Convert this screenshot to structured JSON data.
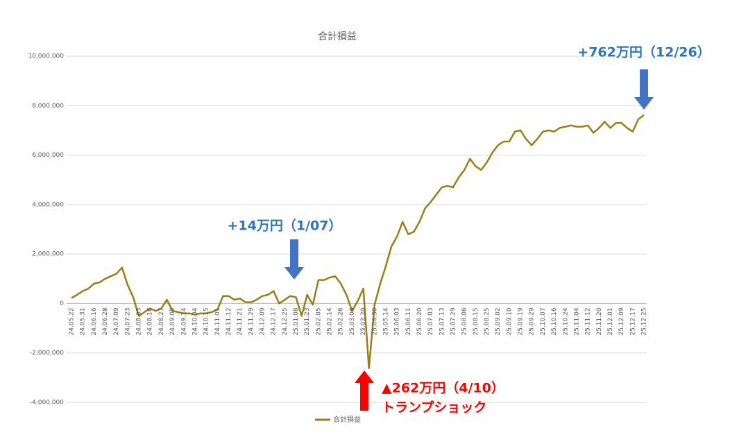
{
  "chart_data": {
    "type": "line",
    "title": "合計損益",
    "categories": [
      "24.05.22",
      null,
      "24.05.31",
      null,
      "24.06.16",
      null,
      "24.06.28",
      null,
      "24.07.09",
      null,
      "24.07.23",
      null,
      "24.08.03",
      null,
      "24.08.16",
      null,
      "24.08.27",
      null,
      "24.09.05",
      null,
      "24.09.14",
      null,
      "24.10.04",
      null,
      "24.10.15",
      null,
      "24.11.01",
      null,
      "24.11.12",
      null,
      "24.11.21",
      null,
      "24.11.29",
      null,
      "24.12.09",
      null,
      "24.12.17",
      null,
      "24.12.25",
      null,
      "25.01.08",
      null,
      "25.01.23",
      null,
      "25.02.05",
      null,
      "25.02.14",
      null,
      "25.02.26",
      null,
      "25.03.06",
      null,
      "25.03.20",
      null,
      "25.04.30",
      null,
      "25.05.14",
      null,
      "25.06.03",
      null,
      "25.06.11",
      null,
      "25.06.20",
      null,
      "25.07.03",
      null,
      "25.07.13",
      null,
      "25.07.29",
      null,
      "25.08.06",
      null,
      "25.08.15",
      null,
      "25.08.25",
      null,
      "25.09.02",
      null,
      "25.09.10",
      null,
      "25.09.19",
      null,
      "25.09.29",
      null,
      "25.10.07",
      null,
      "25.10.16",
      null,
      "25.10.24",
      null,
      "25.11.04",
      null,
      "25.11.12",
      null,
      "25.11.20",
      null,
      "25.12.01",
      null,
      "25.12.09",
      null,
      "25.12.17",
      null,
      "25.12.25"
    ],
    "series": [
      {
        "name": "合計損益",
        "color": "#9c7c16",
        "values": [
          220000,
          350000,
          500000,
          600000,
          800000,
          850000,
          1000000,
          1100000,
          1200000,
          1450000,
          750000,
          250000,
          -500000,
          -350000,
          -200000,
          -300000,
          -200000,
          150000,
          -300000,
          -350000,
          -400000,
          -400000,
          -450000,
          -400000,
          -400000,
          -350000,
          -250000,
          300000,
          300000,
          150000,
          200000,
          50000,
          50000,
          150000,
          300000,
          350000,
          500000,
          0,
          150000,
          300000,
          250000,
          -500000,
          350000,
          -50000,
          950000,
          950000,
          1050000,
          1100000,
          800000,
          350000,
          -300000,
          100000,
          600000,
          -2620000,
          -50000,
          800000,
          1500000,
          2300000,
          2700000,
          3300000,
          2800000,
          2900000,
          3300000,
          3850000,
          4100000,
          4400000,
          4700000,
          4750000,
          4700000,
          5100000,
          5400000,
          5850000,
          5550000,
          5400000,
          5700000,
          6100000,
          6400000,
          6550000,
          6550000,
          6950000,
          7000000,
          6650000,
          6400000,
          6650000,
          6950000,
          7000000,
          6950000,
          7100000,
          7150000,
          7200000,
          7150000,
          7150000,
          7200000,
          6900000,
          7100000,
          7350000,
          7100000,
          7300000,
          7300000,
          7100000,
          6950000,
          7450000,
          7620000
        ]
      }
    ],
    "ylim": [
      -4000000,
      10000000
    ],
    "yticks": [
      {
        "value": -4000000,
        "label": "-4,000,000"
      },
      {
        "value": -2000000,
        "label": "-2,000,000"
      },
      0,
      {
        "value": 2000000,
        "label": "2,000,000"
      },
      {
        "value": 4000000,
        "label": "4,000,000"
      },
      {
        "value": 6000000,
        "label": "6,000,000"
      },
      {
        "value": 8000000,
        "label": "8,000,000"
      },
      {
        "value": 10000000,
        "label": "10,000,000"
      }
    ],
    "negative_tick_color": "#ff0000",
    "grid": true,
    "legend": "bottom",
    "annotations": [
      "+14万円（1/07）",
      "+762万円（12/26）",
      "▲262万円（4/10）",
      "トランプショック"
    ]
  }
}
